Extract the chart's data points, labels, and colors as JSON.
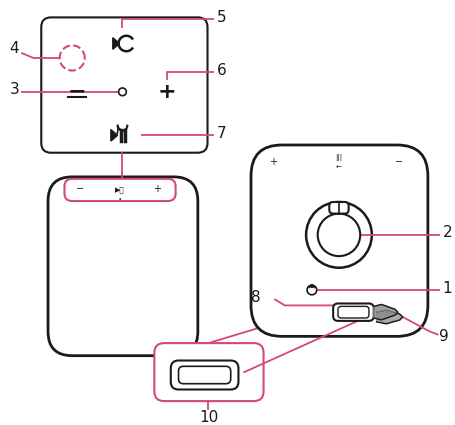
{
  "bg_color": "#ffffff",
  "pink": "#d4477a",
  "black": "#1a1a1a",
  "gray": "#888888",
  "fig_width": 4.56,
  "fig_height": 4.25,
  "dpi": 100
}
